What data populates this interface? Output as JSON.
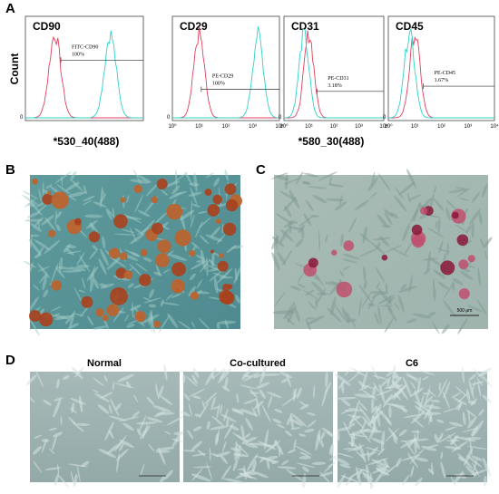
{
  "panel_a": {
    "label": "A",
    "y_label": "Count",
    "x_labels": [
      "*530_40(488)",
      "*580_30(488)"
    ],
    "histograms": [
      {
        "marker": "CD90",
        "gate_label": "FITC-CD90",
        "gate_value": "100%",
        "y_zero": "0"
      },
      {
        "marker": "CD29",
        "gate_label": "PE-CD29",
        "gate_value": "100%",
        "y_zero": "0",
        "xticks": [
          "10⁰",
          "10¹",
          "10²",
          "10³",
          "10⁴"
        ]
      },
      {
        "marker": "CD31",
        "gate_label": "PE-CD31",
        "gate_value": "3.18%",
        "y_zero": "0",
        "xticks": [
          "10⁰",
          "10¹",
          "10²",
          "10³",
          "10⁴"
        ]
      },
      {
        "marker": "CD45",
        "gate_label": "PE-CD45",
        "gate_value": "1.67%",
        "y_zero": "0",
        "xticks": [
          "10⁰",
          "10¹",
          "10²",
          "10³",
          "10⁴"
        ]
      }
    ]
  },
  "panel_b": {
    "label": "B"
  },
  "panel_c": {
    "label": "C",
    "scale_bar": "500 μm"
  },
  "panel_d": {
    "label": "D",
    "titles": [
      "Normal",
      "Co-cultured",
      "C6"
    ]
  }
}
